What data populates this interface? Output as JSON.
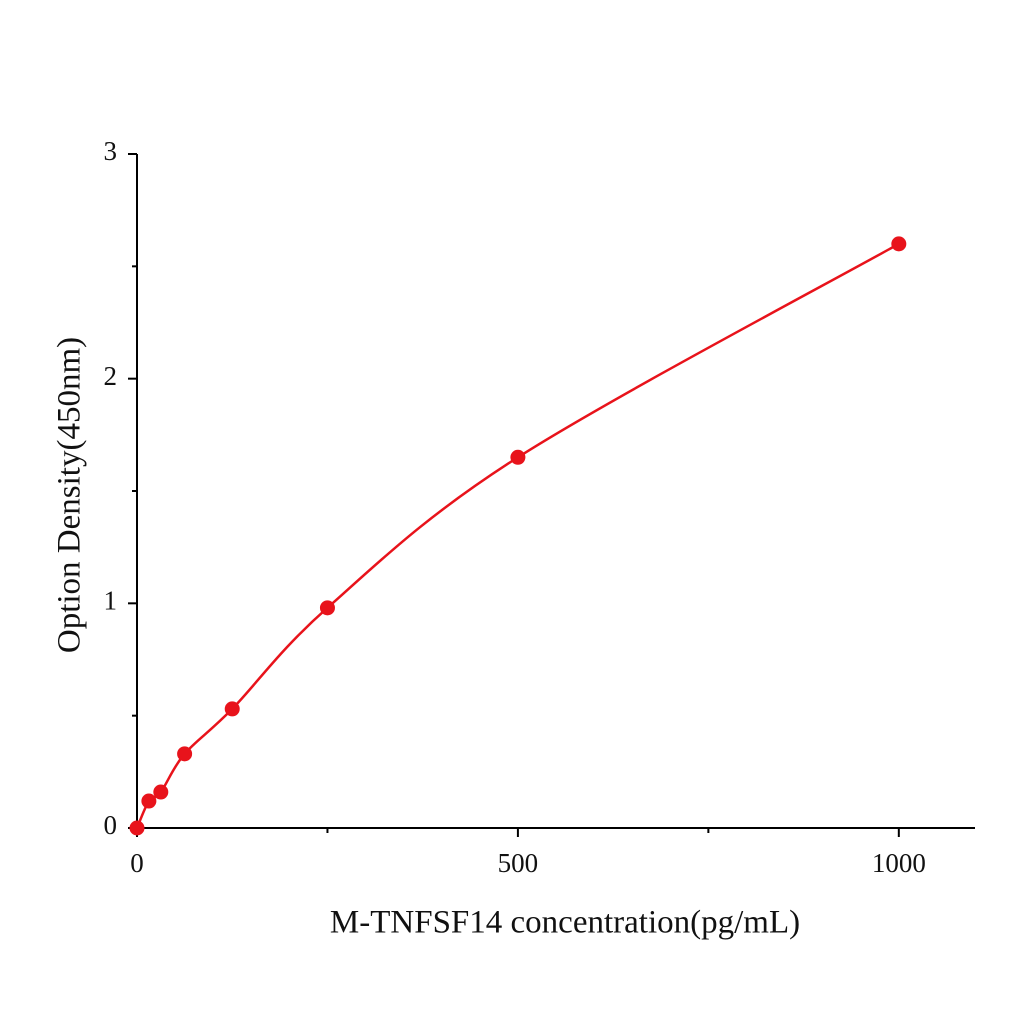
{
  "chart_data": {
    "type": "scatter",
    "xlabel": "M-TNFSF14 concentration(pg/mL)",
    "ylabel": "Option Density(450nm)",
    "x": [
      0,
      15.6,
      31.25,
      62.5,
      125,
      250,
      500,
      1000
    ],
    "series": [
      {
        "color": "#e8131b",
        "values": [
          0.0,
          0.12,
          0.16,
          0.33,
          0.53,
          0.98,
          1.65,
          2.6
        ]
      }
    ],
    "fit_curve": true,
    "xlim": [
      0,
      1100
    ],
    "ylim": [
      0,
      3
    ],
    "xticks": [
      0,
      500,
      1000
    ],
    "yticks": [
      0,
      1,
      2,
      3
    ],
    "xminorticks": [
      250,
      750
    ],
    "yminorticks": [
      0.5,
      1.5,
      2.5
    ]
  }
}
